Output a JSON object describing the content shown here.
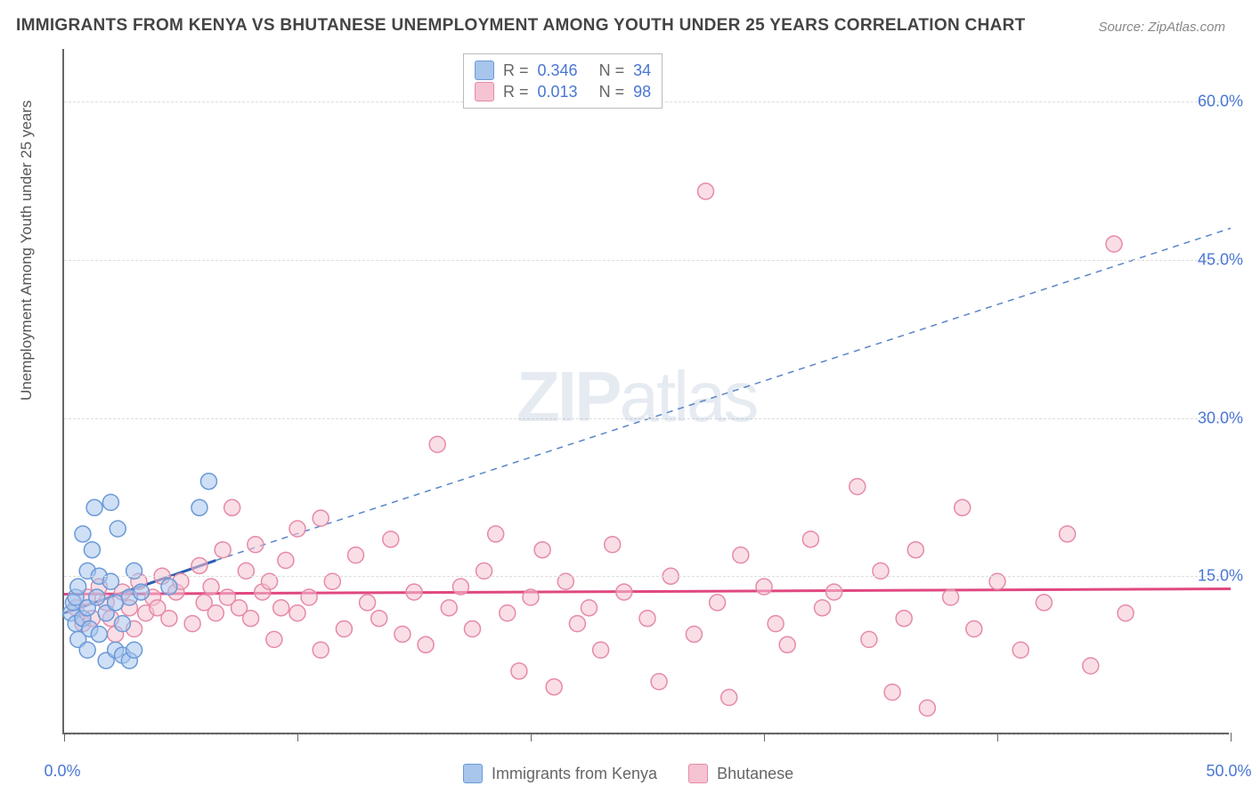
{
  "title": "IMMIGRANTS FROM KENYA VS BHUTANESE UNEMPLOYMENT AMONG YOUTH UNDER 25 YEARS CORRELATION CHART",
  "source": "Source: ZipAtlas.com",
  "watermark": {
    "zip": "ZIP",
    "atlas": "atlas"
  },
  "chart": {
    "type": "scatter",
    "background_color": "#ffffff",
    "grid_color": "#dddddd",
    "axis_color": "#666666",
    "label_color": "#555555",
    "tick_label_color": "#4a76d4",
    "yaxis_label": "Unemployment Among Youth under 25 years",
    "xlim": [
      0,
      50
    ],
    "ylim": [
      0,
      65
    ],
    "xtick_labels": [
      {
        "pos": 0,
        "label": "0.0%"
      },
      {
        "pos": 50,
        "label": "50.0%"
      }
    ],
    "xtick_marks": [
      0,
      10,
      20,
      30,
      40,
      50
    ],
    "ytick_labels": [
      {
        "pos": 15,
        "label": "15.0%"
      },
      {
        "pos": 30,
        "label": "30.0%"
      },
      {
        "pos": 45,
        "label": "45.0%"
      },
      {
        "pos": 60,
        "label": "60.0%"
      }
    ],
    "hgrid": [
      0,
      15,
      30,
      45,
      60
    ],
    "marker_radius": 9,
    "marker_stroke_width": 1.5,
    "series": [
      {
        "name": "Immigrants from Kenya",
        "color_fill": "#a8c5ec",
        "color_stroke": "#6a9ad8",
        "R": "0.346",
        "N": "34",
        "trend": {
          "solid": {
            "x1": 0,
            "y1": 11.5,
            "x2": 6.5,
            "y2": 16.5,
            "color": "#2a5db0",
            "width": 3
          },
          "dashed": {
            "x1": 6.5,
            "y1": 16.5,
            "x2": 50,
            "y2": 48,
            "color": "#5a85c8",
            "width": 1.5,
            "dash": "7 6"
          }
        },
        "points": [
          [
            0.3,
            11.5
          ],
          [
            0.4,
            12.5
          ],
          [
            0.5,
            10.5
          ],
          [
            0.5,
            13.0
          ],
          [
            0.6,
            9.0
          ],
          [
            0.6,
            14.0
          ],
          [
            0.8,
            11.0
          ],
          [
            0.8,
            19.0
          ],
          [
            1.0,
            8.0
          ],
          [
            1.0,
            12.0
          ],
          [
            1.0,
            15.5
          ],
          [
            1.1,
            10.0
          ],
          [
            1.2,
            17.5
          ],
          [
            1.3,
            21.5
          ],
          [
            1.4,
            13.0
          ],
          [
            1.5,
            9.5
          ],
          [
            1.5,
            15.0
          ],
          [
            1.8,
            7.0
          ],
          [
            1.8,
            11.5
          ],
          [
            2.0,
            14.5
          ],
          [
            2.0,
            22.0
          ],
          [
            2.2,
            8.0
          ],
          [
            2.2,
            12.5
          ],
          [
            2.3,
            19.5
          ],
          [
            2.5,
            7.5
          ],
          [
            2.5,
            10.5
          ],
          [
            2.8,
            7.0
          ],
          [
            2.8,
            13.0
          ],
          [
            3.0,
            8.0
          ],
          [
            3.0,
            15.5
          ],
          [
            3.3,
            13.5
          ],
          [
            4.5,
            14.0
          ],
          [
            5.8,
            21.5
          ],
          [
            6.2,
            24.0
          ]
        ]
      },
      {
        "name": "Bhutanese",
        "color_fill": "#f5c3d1",
        "color_stroke": "#e68aa8",
        "R": "0.013",
        "N": "98",
        "trend": {
          "solid": {
            "x1": 0,
            "y1": 13.3,
            "x2": 50,
            "y2": 13.8,
            "color": "#e04880",
            "width": 3
          },
          "dashed": null
        },
        "points": [
          [
            0.5,
            12.0
          ],
          [
            0.8,
            10.5
          ],
          [
            1.0,
            13.0
          ],
          [
            1.2,
            11.0
          ],
          [
            1.5,
            14.0
          ],
          [
            1.8,
            12.5
          ],
          [
            2.0,
            11.0
          ],
          [
            2.2,
            9.5
          ],
          [
            2.5,
            13.5
          ],
          [
            2.8,
            12.0
          ],
          [
            3.0,
            10.0
          ],
          [
            3.2,
            14.5
          ],
          [
            3.5,
            11.5
          ],
          [
            3.8,
            13.0
          ],
          [
            4.0,
            12.0
          ],
          [
            4.2,
            15.0
          ],
          [
            4.5,
            11.0
          ],
          [
            4.8,
            13.5
          ],
          [
            5.0,
            14.5
          ],
          [
            5.5,
            10.5
          ],
          [
            5.8,
            16.0
          ],
          [
            6.0,
            12.5
          ],
          [
            6.3,
            14.0
          ],
          [
            6.5,
            11.5
          ],
          [
            6.8,
            17.5
          ],
          [
            7.0,
            13.0
          ],
          [
            7.2,
            21.5
          ],
          [
            7.5,
            12.0
          ],
          [
            7.8,
            15.5
          ],
          [
            8.0,
            11.0
          ],
          [
            8.2,
            18.0
          ],
          [
            8.5,
            13.5
          ],
          [
            8.8,
            14.5
          ],
          [
            9.0,
            9.0
          ],
          [
            9.3,
            12.0
          ],
          [
            9.5,
            16.5
          ],
          [
            10.0,
            11.5
          ],
          [
            10.0,
            19.5
          ],
          [
            10.5,
            13.0
          ],
          [
            11.0,
            8.0
          ],
          [
            11.0,
            20.5
          ],
          [
            11.5,
            14.5
          ],
          [
            12.0,
            10.0
          ],
          [
            12.5,
            17.0
          ],
          [
            13.0,
            12.5
          ],
          [
            13.5,
            11.0
          ],
          [
            14.0,
            18.5
          ],
          [
            14.5,
            9.5
          ],
          [
            15.0,
            13.5
          ],
          [
            15.5,
            8.5
          ],
          [
            16.0,
            27.5
          ],
          [
            16.5,
            12.0
          ],
          [
            17.0,
            14.0
          ],
          [
            17.5,
            10.0
          ],
          [
            18.0,
            15.5
          ],
          [
            18.5,
            19.0
          ],
          [
            19.0,
            11.5
          ],
          [
            19.5,
            6.0
          ],
          [
            20.0,
            13.0
          ],
          [
            20.5,
            17.5
          ],
          [
            21.0,
            4.5
          ],
          [
            21.5,
            14.5
          ],
          [
            22.0,
            10.5
          ],
          [
            22.5,
            12.0
          ],
          [
            23.0,
            8.0
          ],
          [
            23.5,
            18.0
          ],
          [
            24.0,
            13.5
          ],
          [
            25.0,
            11.0
          ],
          [
            25.5,
            5.0
          ],
          [
            26.0,
            15.0
          ],
          [
            27.0,
            9.5
          ],
          [
            27.5,
            51.5
          ],
          [
            28.0,
            12.5
          ],
          [
            28.5,
            3.5
          ],
          [
            29.0,
            17.0
          ],
          [
            30.0,
            14.0
          ],
          [
            30.5,
            10.5
          ],
          [
            31.0,
            8.5
          ],
          [
            32.0,
            18.5
          ],
          [
            32.5,
            12.0
          ],
          [
            33.0,
            13.5
          ],
          [
            34.0,
            23.5
          ],
          [
            34.5,
            9.0
          ],
          [
            35.0,
            15.5
          ],
          [
            35.5,
            4.0
          ],
          [
            36.0,
            11.0
          ],
          [
            36.5,
            17.5
          ],
          [
            37.0,
            2.5
          ],
          [
            38.0,
            13.0
          ],
          [
            38.5,
            21.5
          ],
          [
            39.0,
            10.0
          ],
          [
            40.0,
            14.5
          ],
          [
            41.0,
            8.0
          ],
          [
            42.0,
            12.5
          ],
          [
            43.0,
            19.0
          ],
          [
            44.0,
            6.5
          ],
          [
            45.0,
            46.5
          ],
          [
            45.5,
            11.5
          ]
        ]
      }
    ],
    "legend_bottom": [
      {
        "label": "Immigrants from Kenya",
        "fill": "#a8c5ec",
        "stroke": "#6a9ad8"
      },
      {
        "label": "Bhutanese",
        "fill": "#f5c3d1",
        "stroke": "#e68aa8"
      }
    ]
  }
}
